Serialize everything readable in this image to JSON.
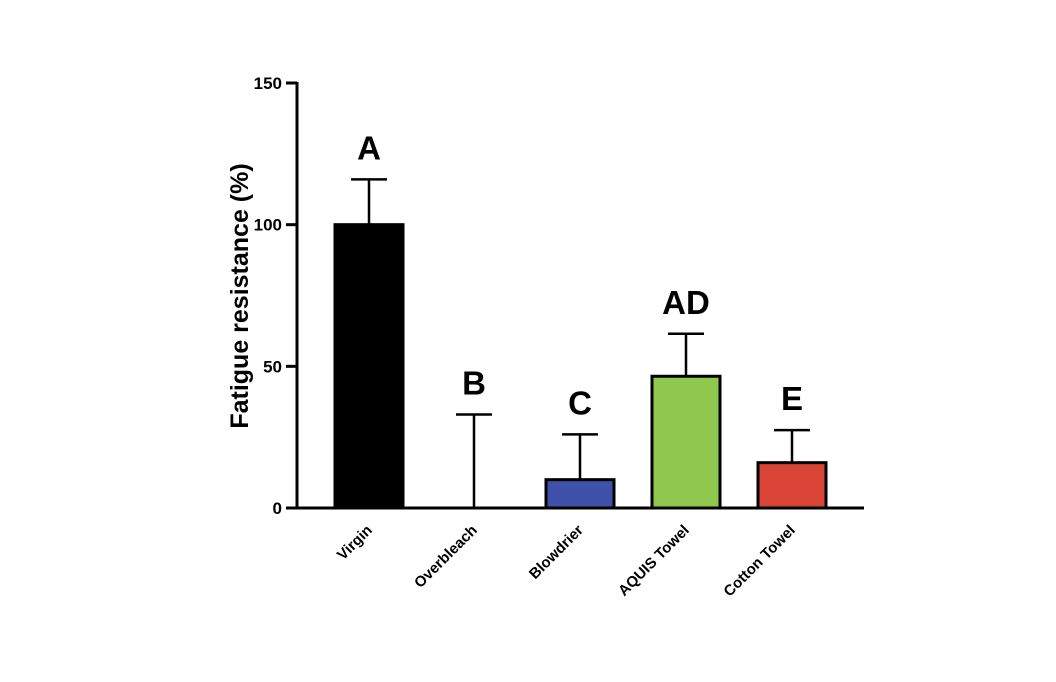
{
  "chart_data": {
    "type": "bar",
    "title": "",
    "xlabel": "",
    "ylabel": "Fatigue resistance (%)",
    "ylim": [
      0,
      150
    ],
    "yticks": [
      "0",
      "50",
      "100",
      "150"
    ],
    "grid": false,
    "categories": [
      "Virgin",
      "Overbleach",
      "Blowdrier",
      "AQUIS Towel",
      "Cotton Towel"
    ],
    "values": [
      100,
      0,
      10,
      46.5,
      16
    ],
    "error_upper": [
      116,
      33,
      26,
      61.5,
      27.5
    ],
    "significance_labels": [
      "A",
      "B",
      "C",
      "AD",
      "E"
    ],
    "colors": [
      "#000000",
      "#ffffff",
      "#3f51a8",
      "#8fc74f",
      "#d94436"
    ]
  }
}
